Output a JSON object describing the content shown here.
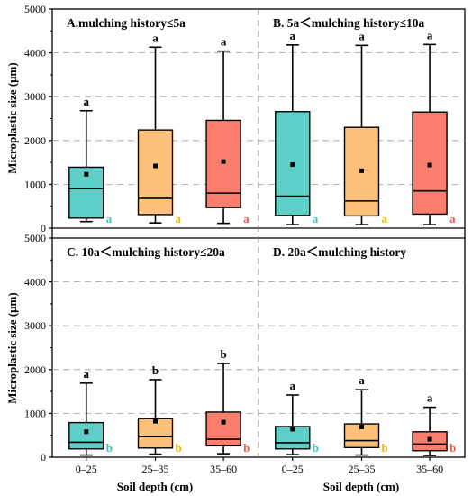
{
  "colors": {
    "0-25": "#5ECFC8",
    "25-35": "#FDC17A",
    "35-60": "#FA7E6E",
    "letter_0-25": "#3FBFC0",
    "letter_25-35": "#F5B400",
    "letter_35-60": "#F25A4A",
    "grid": "#9a9a9a",
    "frame": "#000000"
  },
  "axes": {
    "ylabel": "Microplastic size (μm)",
    "xlabel": "Soil depth (cm)",
    "yticks": [
      "0",
      "1000",
      "2000",
      "3000",
      "4000",
      "5000"
    ],
    "ylim": [
      0,
      5000
    ]
  },
  "chart_data": [
    {
      "type": "box",
      "title": "A.mulching history≤5a",
      "categories": [
        "0–25",
        "25–35",
        "35–60"
      ],
      "boxes": [
        {
          "whisker_low": 150,
          "q1": 230,
          "median": 900,
          "q3": 1390,
          "whisker_high": 2680,
          "mean": 1230,
          "top_letter": "a",
          "side_letter": "a"
        },
        {
          "whisker_low": 120,
          "q1": 310,
          "median": 680,
          "q3": 2240,
          "whisker_high": 4130,
          "mean": 1420,
          "top_letter": "a",
          "side_letter": "a"
        },
        {
          "whisker_low": 110,
          "q1": 470,
          "median": 800,
          "q3": 2460,
          "whisker_high": 4040,
          "mean": 1520,
          "top_letter": "a",
          "side_letter": "a"
        }
      ]
    },
    {
      "type": "box",
      "title": "B. 5a＜mulching history≤10a",
      "categories": [
        "0–25",
        "25–35",
        "35–60"
      ],
      "boxes": [
        {
          "whisker_low": 80,
          "q1": 290,
          "median": 730,
          "q3": 2660,
          "whisker_high": 4180,
          "mean": 1450,
          "top_letter": "a",
          "side_letter": "a"
        },
        {
          "whisker_low": 80,
          "q1": 280,
          "median": 620,
          "q3": 2300,
          "whisker_high": 4170,
          "mean": 1310,
          "top_letter": "a",
          "side_letter": "a"
        },
        {
          "whisker_low": 80,
          "q1": 320,
          "median": 850,
          "q3": 2650,
          "whisker_high": 4190,
          "mean": 1440,
          "top_letter": "a",
          "side_letter": "a"
        }
      ]
    },
    {
      "type": "box",
      "title": "C. 10a＜mulching history≤20a",
      "categories": [
        "0–25",
        "25–35",
        "35–60"
      ],
      "boxes": [
        {
          "whisker_low": 50,
          "q1": 190,
          "median": 340,
          "q3": 790,
          "whisker_high": 1690,
          "mean": 580,
          "top_letter": "a",
          "side_letter": "b"
        },
        {
          "whisker_low": 70,
          "q1": 210,
          "median": 470,
          "q3": 880,
          "whisker_high": 1770,
          "mean": 820,
          "top_letter": "b",
          "side_letter": "b"
        },
        {
          "whisker_low": 80,
          "q1": 260,
          "median": 410,
          "q3": 1030,
          "whisker_high": 2140,
          "mean": 800,
          "top_letter": "b",
          "side_letter": "b"
        }
      ]
    },
    {
      "type": "box",
      "title": "D. 20a＜mulching history",
      "categories": [
        "0–25",
        "25–35",
        "35–60"
      ],
      "boxes": [
        {
          "whisker_low": 60,
          "q1": 190,
          "median": 330,
          "q3": 700,
          "whisker_high": 1420,
          "mean": 640,
          "top_letter": "a",
          "side_letter": "b"
        },
        {
          "whisker_low": 50,
          "q1": 220,
          "median": 380,
          "q3": 760,
          "whisker_high": 1540,
          "mean": 690,
          "top_letter": "a",
          "side_letter": "b"
        },
        {
          "whisker_low": 40,
          "q1": 150,
          "median": 300,
          "q3": 580,
          "whisker_high": 1140,
          "mean": 410,
          "top_letter": "a",
          "side_letter": "b"
        }
      ]
    }
  ]
}
